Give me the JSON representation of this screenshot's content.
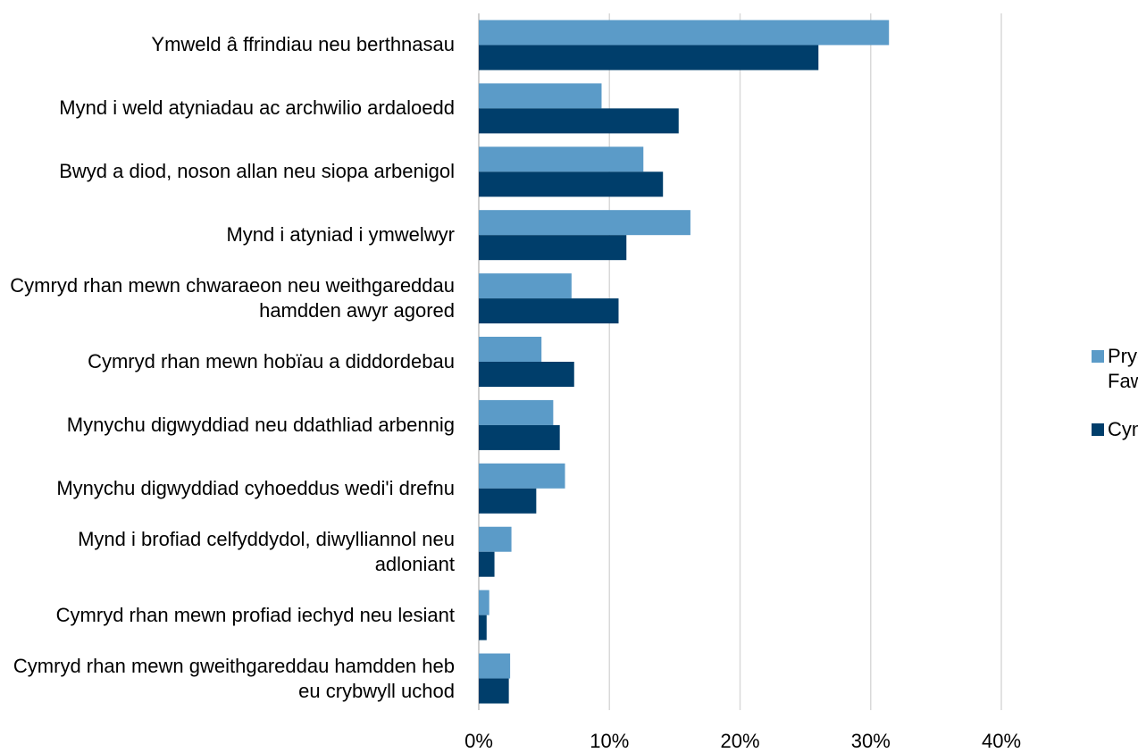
{
  "chart_data": {
    "type": "barh",
    "categories": [
      "Ymweld â ffrindiau neu berthnasau",
      "Mynd i weld atyniadau ac archwilio ardaloedd",
      "Bwyd a diod, noson allan neu siopa arbenigol",
      "Mynd i atyniad i ymwelwyr",
      "Cymryd rhan mewn chwaraeon neu weithgareddau hamdden awyr agored",
      "Cymryd rhan mewn hobïau a diddordebau",
      "Mynychu digwyddiad neu ddathliad arbennig",
      "Mynychu digwyddiad cyhoeddus wedi'i drefnu",
      "Mynd i brofiad celfyddydol, diwylliannol neu adloniant",
      "Cymryd rhan mewn profiad iechyd neu lesiant",
      "Cymryd rhan mewn gweithgareddau hamdden heb eu crybwyll uchod"
    ],
    "series": [
      {
        "name": "Prydain Fawr",
        "color": "#5b9bc8",
        "values": [
          31.4,
          9.4,
          12.6,
          16.2,
          7.1,
          4.8,
          5.7,
          6.6,
          2.5,
          0.8,
          2.4
        ]
      },
      {
        "name": "Cymru",
        "color": "#003e6b",
        "values": [
          26.0,
          15.3,
          14.1,
          11.3,
          10.7,
          7.3,
          6.2,
          4.4,
          1.2,
          0.6,
          2.3
        ]
      }
    ],
    "xlim": [
      0,
      40
    ],
    "xticks": [
      {
        "value": 0,
        "label": "0%"
      },
      {
        "value": 10,
        "label": "10%"
      },
      {
        "value": 20,
        "label": "20%"
      },
      {
        "value": 30,
        "label": "30%"
      },
      {
        "value": 40,
        "label": "40%"
      }
    ],
    "grid": true,
    "legend": "right"
  }
}
